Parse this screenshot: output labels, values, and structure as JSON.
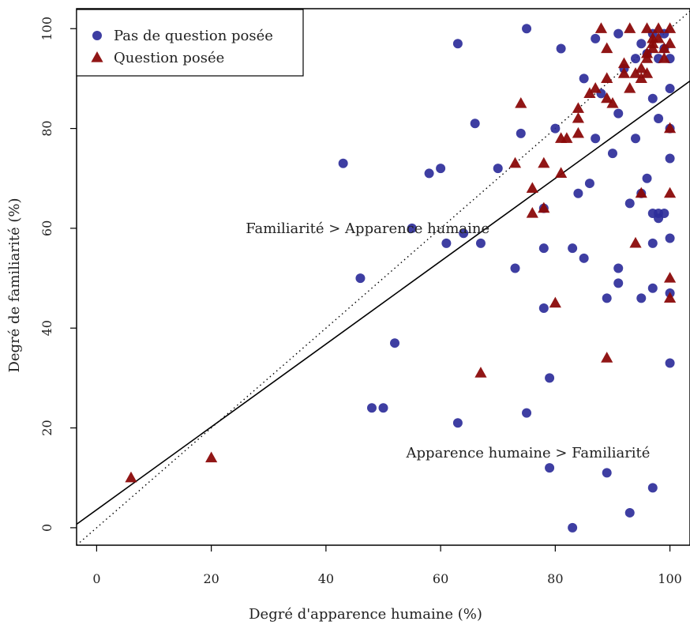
{
  "chart_data": {
    "type": "scatter",
    "title": "",
    "xlabel": "Degré d'apparence humaine (%)",
    "ylabel": "Degré de familiarité (%)",
    "xlim": [
      -3.5,
      103.5
    ],
    "ylim": [
      -3.5,
      104
    ],
    "xticks": [
      0,
      20,
      40,
      60,
      80,
      100
    ],
    "yticks": [
      0,
      20,
      40,
      60,
      80,
      100
    ],
    "grid": false,
    "legend_position": "top-left",
    "annotations": [
      {
        "text": "Familiarité > Apparence humaine",
        "x": 26,
        "y": 60
      },
      {
        "text": "Apparence humaine > Familiarité",
        "x": 54,
        "y": 15
      }
    ],
    "reference_lines": [
      {
        "style": "dotted",
        "intercept": 0,
        "slope": 1
      },
      {
        "style": "solid",
        "intercept": 3.6,
        "slope": 0.83
      }
    ],
    "series": [
      {
        "name": "Pas de question posée",
        "marker": "circle",
        "color": "#2e2e9a",
        "points": [
          [
            43,
            73
          ],
          [
            46,
            50
          ],
          [
            48,
            24
          ],
          [
            50,
            24
          ],
          [
            52,
            37
          ],
          [
            55,
            60
          ],
          [
            58,
            71
          ],
          [
            60,
            72
          ],
          [
            61,
            57
          ],
          [
            63,
            97
          ],
          [
            63,
            21
          ],
          [
            64,
            59
          ],
          [
            66,
            81
          ],
          [
            67,
            57
          ],
          [
            70,
            72
          ],
          [
            73,
            52
          ],
          [
            74,
            79
          ],
          [
            75,
            100
          ],
          [
            75,
            23
          ],
          [
            78,
            64
          ],
          [
            78,
            56
          ],
          [
            78,
            44
          ],
          [
            79,
            30
          ],
          [
            79,
            12
          ],
          [
            80,
            80
          ],
          [
            81,
            96
          ],
          [
            83,
            56
          ],
          [
            83,
            0
          ],
          [
            84,
            67
          ],
          [
            85,
            54
          ],
          [
            85,
            90
          ],
          [
            86,
            69
          ],
          [
            87,
            98
          ],
          [
            87,
            78
          ],
          [
            88,
            87
          ],
          [
            89,
            46
          ],
          [
            89,
            11
          ],
          [
            90,
            75
          ],
          [
            91,
            99
          ],
          [
            91,
            83
          ],
          [
            91,
            52
          ],
          [
            91,
            49
          ],
          [
            92,
            92
          ],
          [
            93,
            65
          ],
          [
            93,
            3
          ],
          [
            94,
            94
          ],
          [
            94,
            78
          ],
          [
            95,
            97
          ],
          [
            95,
            67
          ],
          [
            95,
            46
          ],
          [
            96,
            95
          ],
          [
            96,
            70
          ],
          [
            97,
            99
          ],
          [
            97,
            86
          ],
          [
            97,
            63
          ],
          [
            97,
            57
          ],
          [
            97,
            48
          ],
          [
            97,
            8
          ],
          [
            98,
            94
          ],
          [
            98,
            82
          ],
          [
            98,
            63
          ],
          [
            98,
            62
          ],
          [
            99,
            99
          ],
          [
            99,
            96
          ],
          [
            99,
            63
          ],
          [
            100,
            94
          ],
          [
            100,
            88
          ],
          [
            100,
            80
          ],
          [
            100,
            74
          ],
          [
            100,
            58
          ],
          [
            100,
            47
          ],
          [
            100,
            33
          ]
        ]
      },
      {
        "name": "Question posée",
        "marker": "triangle",
        "color": "#8b0a0a",
        "points": [
          [
            6,
            10
          ],
          [
            20,
            14
          ],
          [
            67,
            31
          ],
          [
            73,
            73
          ],
          [
            74,
            85
          ],
          [
            76,
            68
          ],
          [
            76,
            63
          ],
          [
            78,
            73
          ],
          [
            78,
            64
          ],
          [
            80,
            45
          ],
          [
            81,
            78
          ],
          [
            81,
            71
          ],
          [
            82,
            78
          ],
          [
            84,
            84
          ],
          [
            84,
            82
          ],
          [
            84,
            79
          ],
          [
            86,
            87
          ],
          [
            87,
            88
          ],
          [
            88,
            100
          ],
          [
            89,
            96
          ],
          [
            89,
            90
          ],
          [
            89,
            86
          ],
          [
            89,
            34
          ],
          [
            90,
            85
          ],
          [
            92,
            93
          ],
          [
            92,
            91
          ],
          [
            93,
            100
          ],
          [
            93,
            88
          ],
          [
            94,
            91
          ],
          [
            94,
            57
          ],
          [
            95,
            90
          ],
          [
            95,
            92
          ],
          [
            95,
            67
          ],
          [
            96,
            100
          ],
          [
            96,
            95
          ],
          [
            96,
            91
          ],
          [
            96,
            94
          ],
          [
            97,
            98
          ],
          [
            97,
            96
          ],
          [
            97,
            97
          ],
          [
            98,
            100
          ],
          [
            98,
            98
          ],
          [
            99,
            96
          ],
          [
            99,
            94
          ],
          [
            100,
            100
          ],
          [
            100,
            97
          ],
          [
            100,
            80
          ],
          [
            100,
            67
          ],
          [
            100,
            50
          ],
          [
            100,
            46
          ]
        ]
      }
    ]
  }
}
